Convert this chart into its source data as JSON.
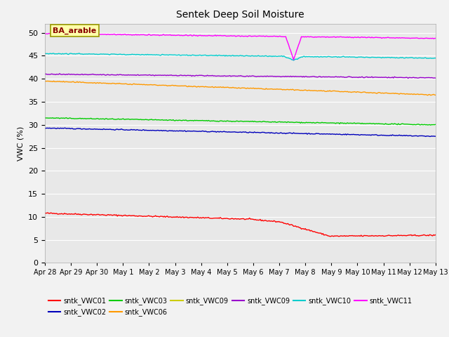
{
  "title": "Sentek Deep Soil Moisture",
  "ylabel": "VWC (%)",
  "ylim": [
    0,
    52
  ],
  "yticks": [
    0,
    5,
    10,
    15,
    20,
    25,
    30,
    35,
    40,
    45,
    50
  ],
  "date_labels": [
    "Apr 28",
    "Apr 29",
    "Apr 30",
    "May 1",
    "May 2",
    "May 3",
    "May 4",
    "May 5",
    "May 6",
    "May 7",
    "May 8",
    "May 9",
    "May 10",
    "May 11",
    "May 12",
    "May 13"
  ],
  "n_points": 400,
  "annotation_text": "BA_arable",
  "background_color": "#e8e8e8",
  "grid_color": "#ffffff",
  "fig_bg": "#f2f2f2",
  "legend_entries": [
    {
      "label": "sntk_VWC01",
      "color": "#ff0000"
    },
    {
      "label": "sntk_VWC02",
      "color": "#0000bb"
    },
    {
      "label": "sntk_VWC03",
      "color": "#00cc00"
    },
    {
      "label": "sntk_VWC06",
      "color": "#ff9900"
    },
    {
      "label": "sntk_VWC09",
      "color": "#cccc00"
    },
    {
      "label": "sntk_VWC09",
      "color": "#9900cc"
    },
    {
      "label": "sntk_VWC10",
      "color": "#00cccc"
    },
    {
      "label": "sntk_VWC11",
      "color": "#ff00ff"
    }
  ]
}
